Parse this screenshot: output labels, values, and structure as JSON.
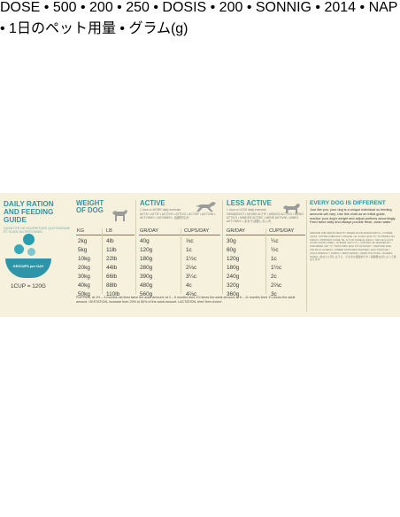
{
  "guide": {
    "title": "DAILY RATION AND FEEDING GUIDE",
    "subtitle": "QUANTITE DE NOURRITURE QUOTIDIENNE ET GUIDE NUTRITIONNEL",
    "bowl_label": "GR/CUPS per DAY",
    "cup_equivalence": "1CUP = 120G",
    "footnote": "DOSE • 500 • 200 • 250 • DOSIS • 200 • SONNIG • 2014 • NAP • 1日のペット用量 • グラム(g)"
  },
  "weight": {
    "title": "WEIGHT OF DOG",
    "col_kg": "KG",
    "col_lb": "LB",
    "kg": [
      "2kg",
      "5kg",
      "10kg",
      "20kg",
      "30kg",
      "40kg",
      "50kg"
    ],
    "lb": [
      "4lb",
      "11lb",
      "22lb",
      "44lb",
      "66lb",
      "88lb",
      "110lb"
    ]
  },
  "active": {
    "title": "ACTIVE",
    "note": "1 hour or MORE daily exercise",
    "note_multi": "AKTIV • ATTIF • ACTIVO • ATTIVO • ACTIEF • AKTIVNI • AKTYWNY • АКТИВЕН • 活動的な犬",
    "col_grams": "GR/DAY",
    "col_cups": "CUPS/DAY",
    "grams": [
      "40g",
      "120g",
      "180g",
      "280g",
      "390g",
      "480g",
      "560g"
    ],
    "cups": [
      "⅓c",
      "1c",
      "1½c",
      "2⅓c",
      "3¼c",
      "4c",
      "4⅔c"
    ]
  },
  "less_active": {
    "title": "LESS ACTIVE",
    "note": "1 hour or LESS daily exercise",
    "note_multi": "GEMÄSSIGT • MOINS ACTIF • MENOS ACTIVO • MENO ATTIVO • MINDER ACTIEF • MÉNĚ AKTIVNÍ • MNIEJ AKTYWNY • あまり活動しない犬",
    "col_grams": "GR/DAY",
    "col_cups": "CUPS/DAY",
    "grams": [
      "30g",
      "60g",
      "120g",
      "180g",
      "240g",
      "320g",
      "360g"
    ],
    "cups": [
      "¼c",
      "½c",
      "1c",
      "1½c",
      "2c",
      "2⅔c",
      "3c"
    ]
  },
  "puppies": {
    "text": "PUPPIES, at 1½ – 3 months old feed twice the adult amount; at 3 – 6 months feed 1½ times the adult amount; at 6 – 11 months feed 1¼ times the adult amount. GESTATION, increase from 20% to 50% of the adult amount. LACTATION, feed 'free choice'."
  },
  "every_dog": {
    "title": "EVERY DOG IS DIFFERENT",
    "text": "Just like you, your dog is a unique individual so feeding amounts will vary. Use this chart as an initial guide, monitor your dog's weight and adjust portions accordingly. Feed twice daily and always provide fresh, clean water.",
    "multilingual": "GERADE WIE MENSCHEN IST JEDER HUND EINZIGARTIG • COMME VOUS, VOTRE CHIEN EST UNIQUE • AL IGUAL QUE TÚ, TU PERRO ES ÚNICO • PROPRIO COME TE, IL TUO CANE È UNICO • NET ALS JIJ IS JOUW HOND UNIEK • STEJNĚ JAKO VY, I VÁŠ PES JE JEDINEČNÝ • PODOBNIE JAK TY, TWÓJ PIES JEST WYJĄTKOWY • SERVIRE DUE VOLTE AL GIORNO • IMMER FRISCHES WASSER • EAU FRAÎCHE • AGUA FRESCA Y LIMPIA • VERS WATER • ČERSTVÁ VODA • ŚWIEŻA WODA • あなたと同じように、どの犬も個性的です • 給餌量は犬によって異なります"
  },
  "colors": {
    "accent": "#2d95a7",
    "panel_bg": "#f6f1dc",
    "text": "#3a3a3a"
  }
}
